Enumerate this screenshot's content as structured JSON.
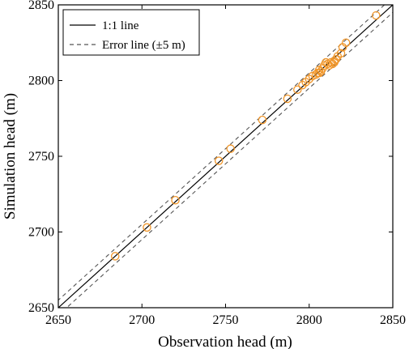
{
  "chart_data": {
    "type": "scatter",
    "xlabel": "Observation head (m)",
    "ylabel": "Simulation head (m)",
    "xlim": [
      2650,
      2850
    ],
    "ylim": [
      2650,
      2850
    ],
    "xticks": [
      "2650",
      "2700",
      "2750",
      "2800",
      "2850"
    ],
    "yticks": [
      "2650",
      "2700",
      "2750",
      "2800",
      "2850"
    ],
    "grid": false,
    "legend_position": "top-left",
    "legend": [
      {
        "label": "1:1 line",
        "style": "solid",
        "color": "#000000"
      },
      {
        "label": "Error line (±5 m)",
        "style": "dashed",
        "color": "#555555"
      }
    ],
    "reference_lines": {
      "one_to_one": {
        "offset": 0
      },
      "error_lines": {
        "offset": 5
      }
    },
    "marker_color": "#F0962A",
    "points": [
      {
        "x": 2684,
        "y": 2684
      },
      {
        "x": 2703,
        "y": 2703
      },
      {
        "x": 2720,
        "y": 2721
      },
      {
        "x": 2746,
        "y": 2747
      },
      {
        "x": 2753,
        "y": 2755
      },
      {
        "x": 2772,
        "y": 2774
      },
      {
        "x": 2787,
        "y": 2788
      },
      {
        "x": 2793,
        "y": 2794
      },
      {
        "x": 2796,
        "y": 2797
      },
      {
        "x": 2798,
        "y": 2799
      },
      {
        "x": 2800,
        "y": 2801
      },
      {
        "x": 2802,
        "y": 2803
      },
      {
        "x": 2804,
        "y": 2804
      },
      {
        "x": 2805,
        "y": 2805
      },
      {
        "x": 2806,
        "y": 2805
      },
      {
        "x": 2806,
        "y": 2807
      },
      {
        "x": 2807,
        "y": 2806
      },
      {
        "x": 2808,
        "y": 2808
      },
      {
        "x": 2809,
        "y": 2810
      },
      {
        "x": 2810,
        "y": 2812
      },
      {
        "x": 2811,
        "y": 2811
      },
      {
        "x": 2812,
        "y": 2810
      },
      {
        "x": 2813,
        "y": 2812
      },
      {
        "x": 2814,
        "y": 2811
      },
      {
        "x": 2815,
        "y": 2813
      },
      {
        "x": 2815,
        "y": 2812
      },
      {
        "x": 2816,
        "y": 2814
      },
      {
        "x": 2817,
        "y": 2816
      },
      {
        "x": 2819,
        "y": 2818
      },
      {
        "x": 2820,
        "y": 2822
      },
      {
        "x": 2822,
        "y": 2825
      },
      {
        "x": 2840,
        "y": 2843
      }
    ]
  }
}
